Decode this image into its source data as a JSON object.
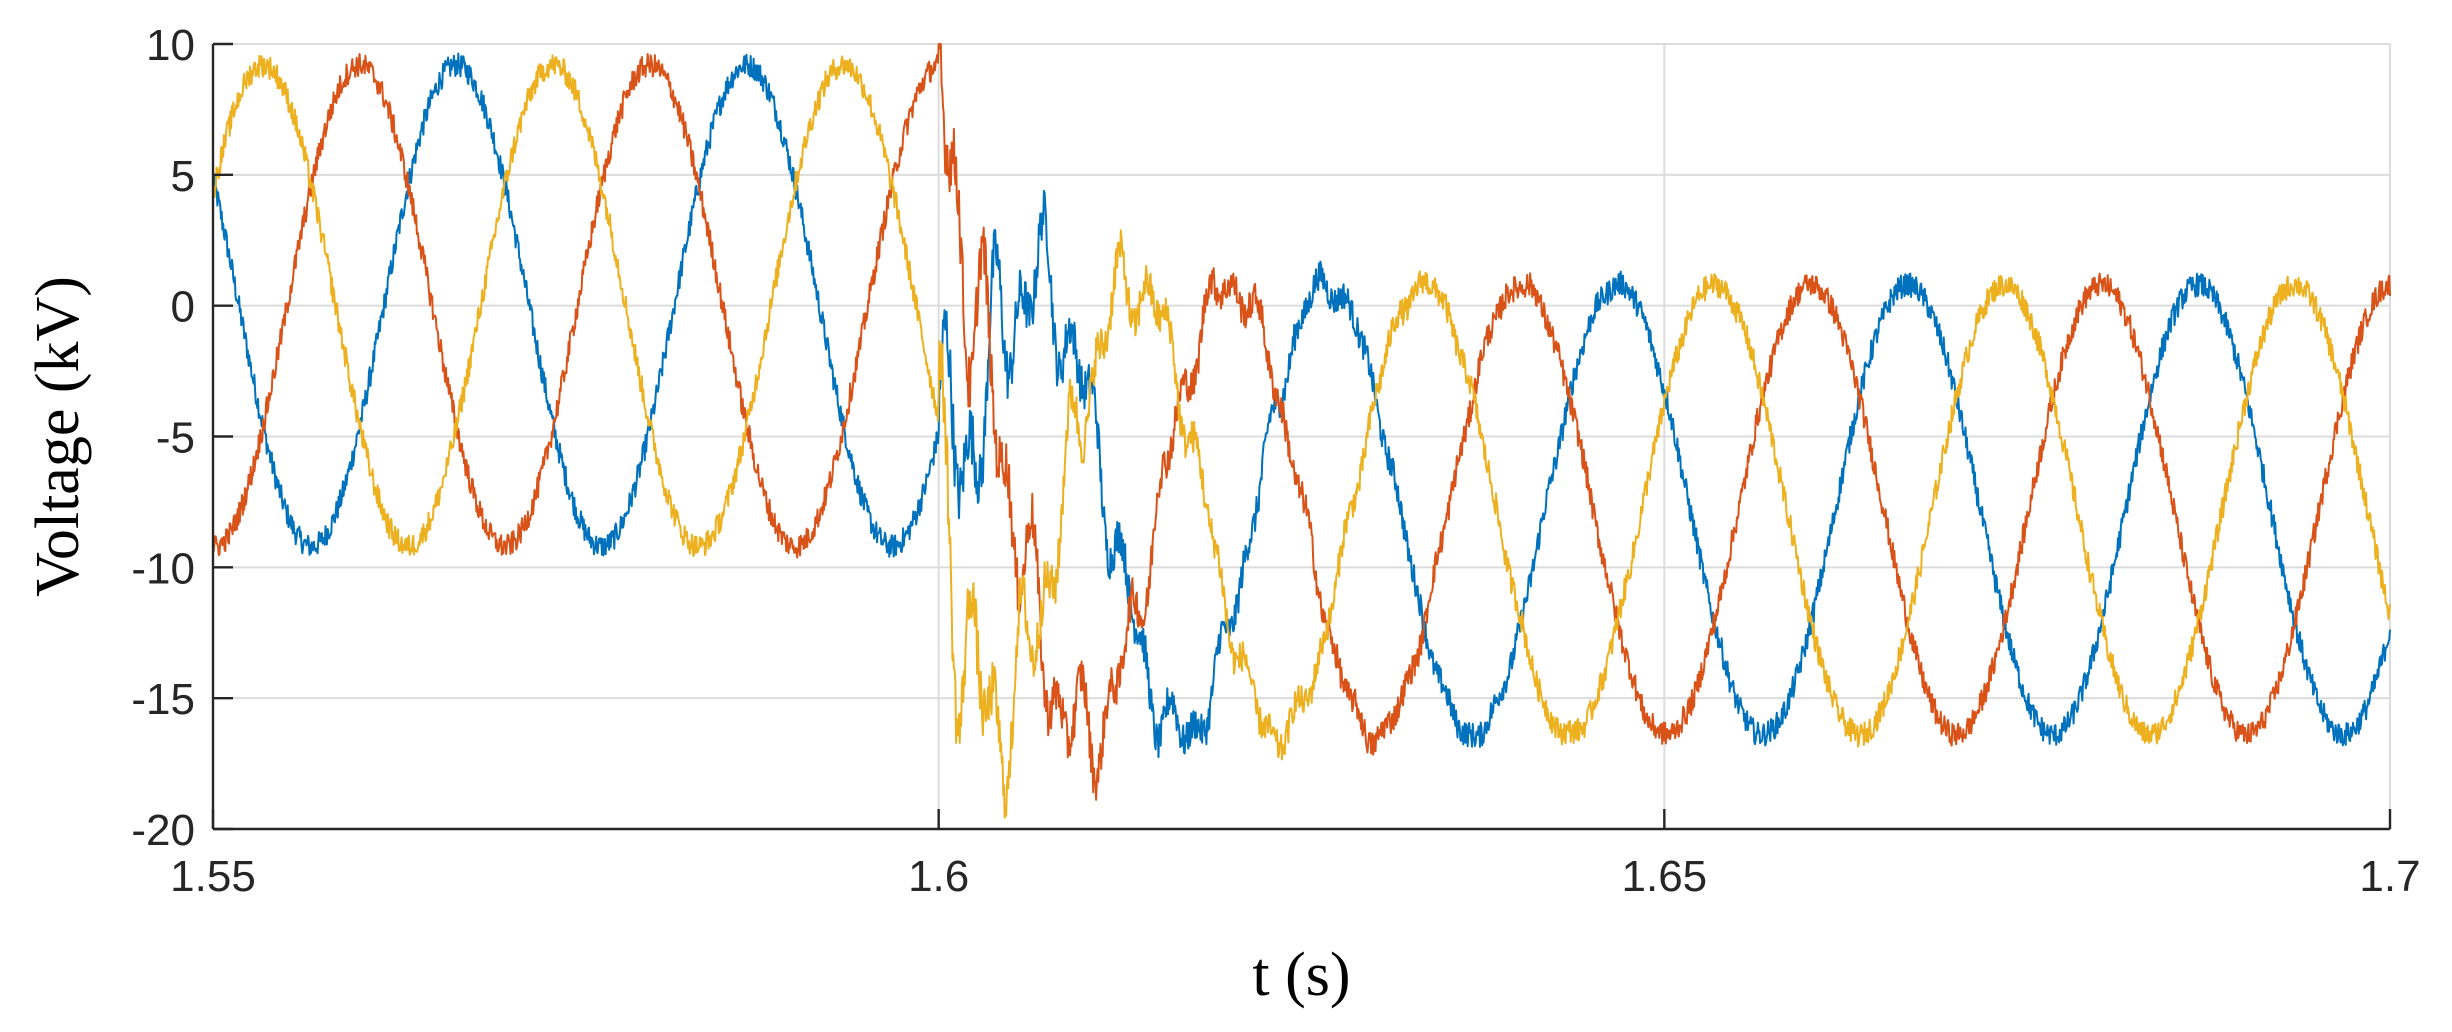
{
  "chart_data": {
    "type": "line",
    "title": "",
    "xlabel": "t (s)",
    "ylabel": "Voltage (kV)",
    "xlim": [
      1.55,
      1.7
    ],
    "ylim": [
      -20,
      10
    ],
    "xticks": [
      1.55,
      1.6,
      1.65,
      1.7
    ],
    "xtick_labels": [
      "1.55",
      "1.6",
      "1.65",
      "1.7"
    ],
    "yticks": [
      10,
      5,
      0,
      -5,
      -10,
      -15,
      -20
    ],
    "ytick_labels": [
      "10",
      "5",
      "0",
      "-5",
      "-10",
      "-15",
      "-20"
    ],
    "grid": true,
    "legend": "none",
    "fault_time": 1.6,
    "frequency_hz": 50,
    "pre_fault": {
      "offset_kv": 0,
      "amplitude_kv": 9.2
    },
    "post_fault": {
      "offset_kv": -7.8,
      "amplitude_kv": 8.6
    },
    "series": [
      {
        "color": "#0072BD",
        "phase_deg": -32
      },
      {
        "color": "#D95319",
        "phase_deg": 88
      },
      {
        "color": "#EDB120",
        "phase_deg": 208
      }
    ]
  }
}
